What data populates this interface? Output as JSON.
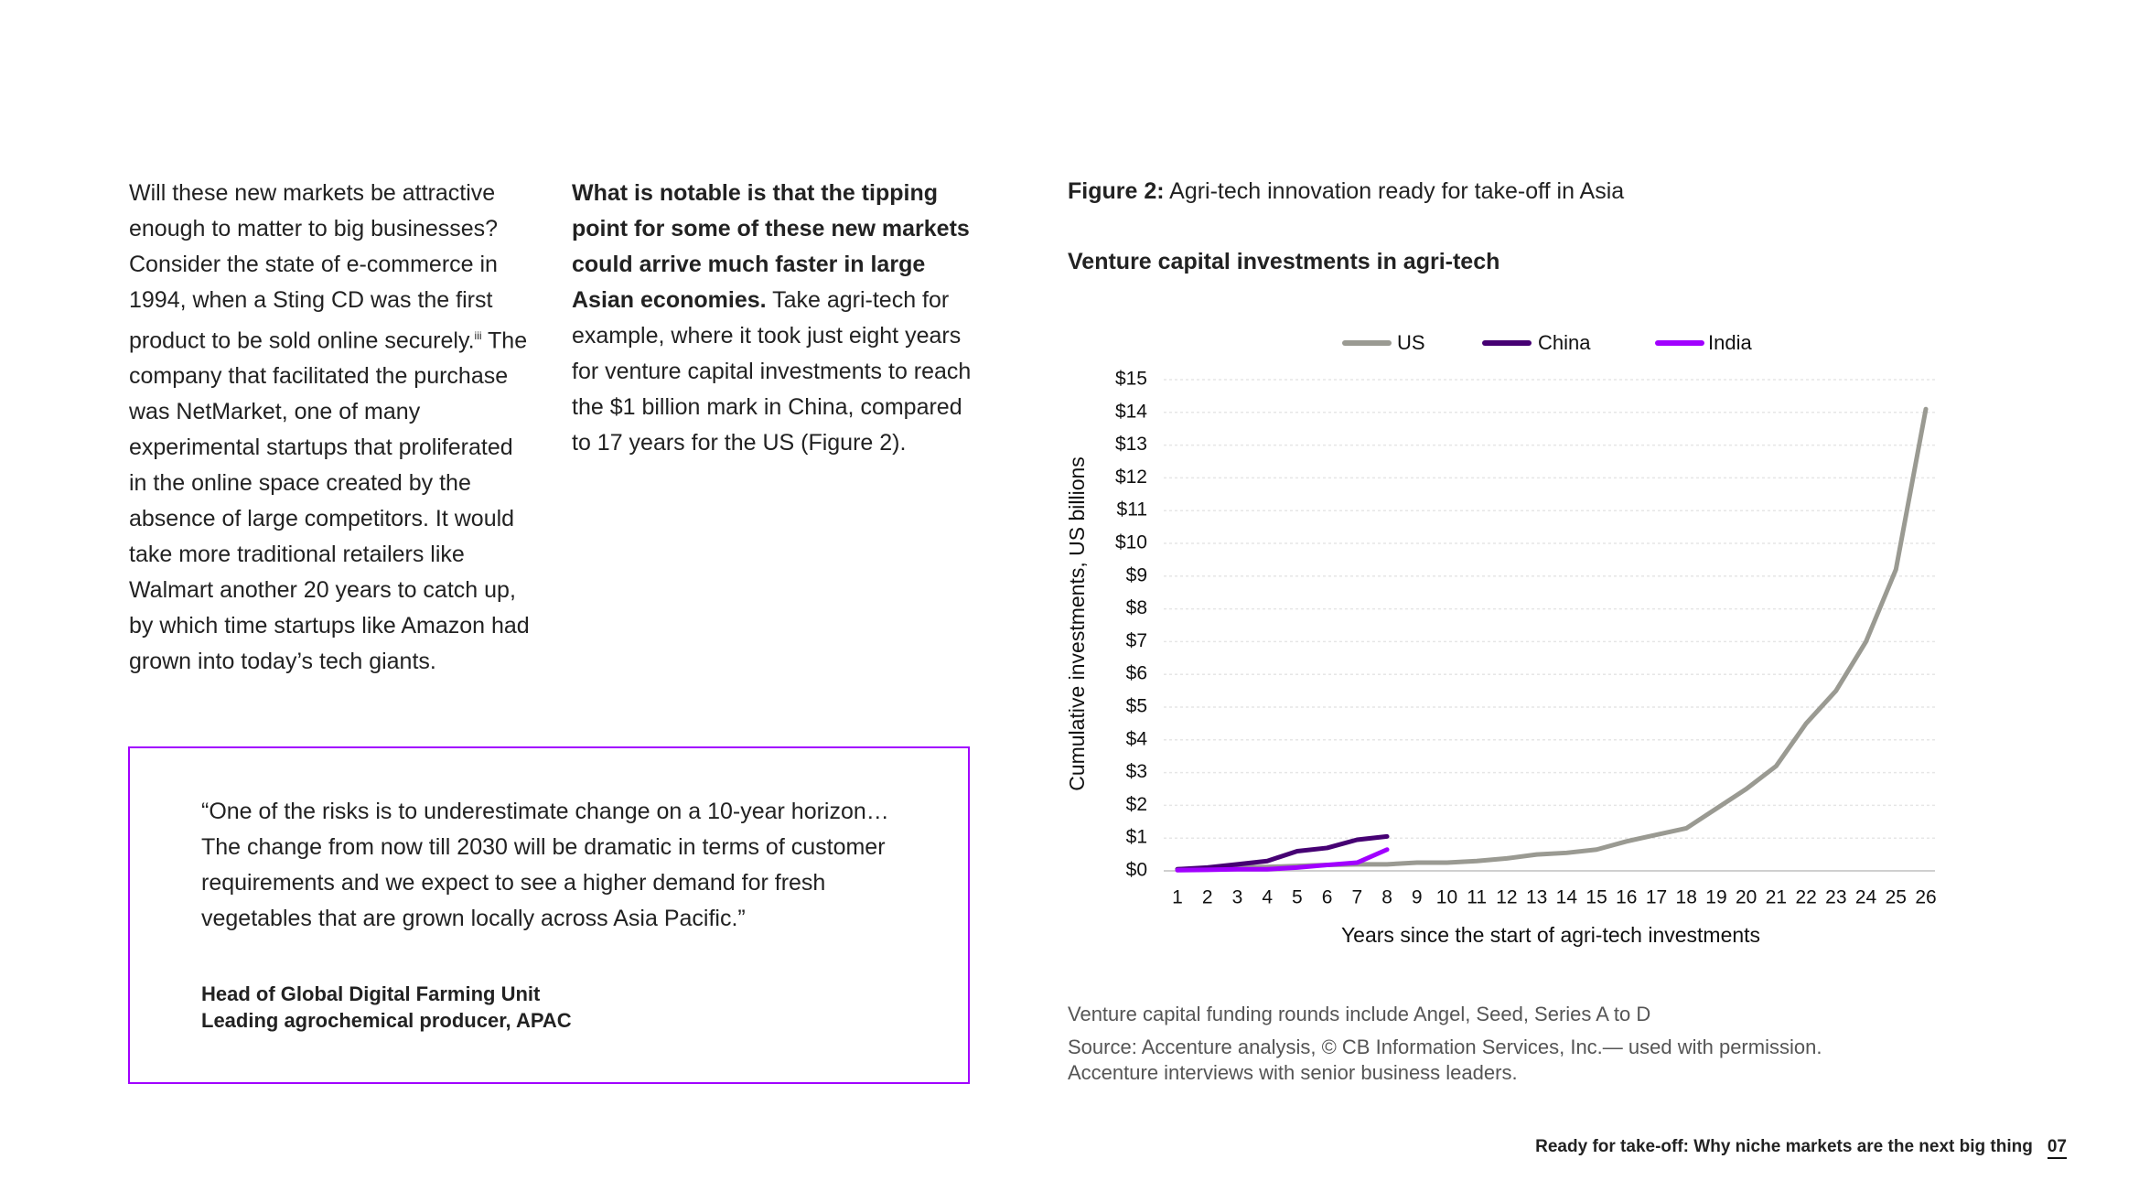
{
  "left_paragraph": {
    "text_before": "Will these new markets be attractive enough to matter to big businesses? Consider the state of e-commerce in 1994, when a Sting CD was the first product to be sold online securely.",
    "superscript": "iii",
    "text_after": " The company that facilitated the purchase was NetMarket, one of many experimental startups that proliferated in the online space created by the absence of large competitors. It would take more traditional retailers like Walmart another 20 years to catch up, by which time startups like Amazon had grown into today’s tech giants."
  },
  "middle_paragraph": {
    "bold": "What is notable is that the tipping point for some of these new markets could arrive much faster in large Asian economies.",
    "rest": " Take agri-tech for example, where it took just eight years for venture capital investments to reach the $1 billion mark in China, compared to 17 years for the US (Figure 2)."
  },
  "quote": {
    "text": "“One of the risks is to underestimate change on a 10-year horizon… The change from now till 2030 will be dramatic in terms of customer requirements and we expect to see a higher demand for fresh vegetables that are grown locally across Asia Pacific.”",
    "author": "Head of Global Digital Farming Unit",
    "organization": "Leading agrochemical producer, APAC"
  },
  "figure": {
    "label": "Figure 2:",
    "caption": " Agri-tech innovation ready for take-off in Asia"
  },
  "chart_data": {
    "type": "line",
    "title": "Venture capital investments in agri-tech",
    "x_label": "Years since the start of agri-tech investments",
    "y_label": "Cumulative investments, US billions",
    "categories": [
      1,
      2,
      3,
      4,
      5,
      6,
      7,
      8,
      9,
      10,
      11,
      12,
      13,
      14,
      15,
      16,
      17,
      18,
      19,
      20,
      21,
      22,
      23,
      24,
      25,
      26
    ],
    "series": [
      {
        "name": "US",
        "color": "#9a9a92",
        "values": [
          0.05,
          0.07,
          0.1,
          0.12,
          0.15,
          0.18,
          0.2,
          0.2,
          0.25,
          0.25,
          0.3,
          0.38,
          0.5,
          0.55,
          0.65,
          0.9,
          1.1,
          1.3,
          1.9,
          2.5,
          3.2,
          4.5,
          5.5,
          7,
          9.2,
          14.1
        ]
      },
      {
        "name": "China",
        "color": "#460073",
        "values": [
          0.05,
          0.1,
          0.2,
          0.3,
          0.6,
          0.7,
          0.95,
          1.05,
          null,
          null,
          null,
          null,
          null,
          null,
          null,
          null,
          null,
          null,
          null,
          null,
          null,
          null,
          null,
          null,
          null,
          null
        ]
      },
      {
        "name": "India",
        "color": "#a100ff",
        "values": [
          0.02,
          0.03,
          0.05,
          0.05,
          0.1,
          0.18,
          0.25,
          0.65,
          null,
          null,
          null,
          null,
          null,
          null,
          null,
          null,
          null,
          null,
          null,
          null,
          null,
          null,
          null,
          null,
          null,
          null
        ]
      }
    ],
    "ylim": [
      0,
      15
    ],
    "yticks": [
      {
        "value": 0,
        "label": "$0"
      },
      {
        "value": 1,
        "label": "$1"
      },
      {
        "value": 2,
        "label": "$2"
      },
      {
        "value": 3,
        "label": "$3"
      },
      {
        "value": 4,
        "label": "$4"
      },
      {
        "value": 5,
        "label": "$5"
      },
      {
        "value": 6,
        "label": "$6"
      },
      {
        "value": 7,
        "label": "$7"
      },
      {
        "value": 8,
        "label": "$8"
      },
      {
        "value": 9,
        "label": "$9"
      },
      {
        "value": 10,
        "label": "$10"
      },
      {
        "value": 11,
        "label": "$11"
      },
      {
        "value": 12,
        "label": "$12"
      },
      {
        "value": 13,
        "label": "$13"
      },
      {
        "value": 14,
        "label": "$14"
      },
      {
        "value": 15,
        "label": "$15"
      }
    ],
    "grid": true,
    "legend": "top"
  },
  "notes": [
    "Venture capital funding rounds include Angel, Seed, Series A to D",
    "Source: Accenture analysis, © CB Information Services, Inc.— used with permission.",
    "Accenture interviews with senior business leaders."
  ],
  "footer": {
    "title": "Ready for take-off: Why niche markets are the next big thing",
    "page": "07"
  }
}
